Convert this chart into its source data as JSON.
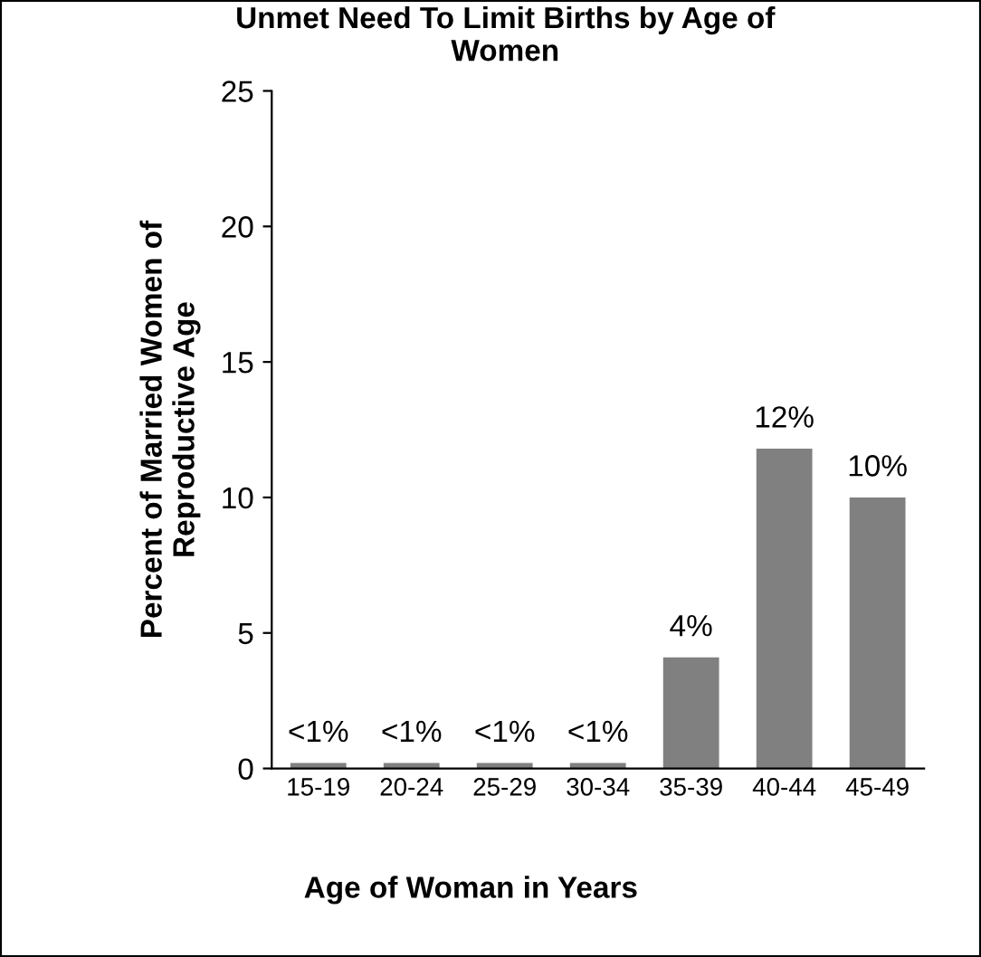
{
  "chart_data": {
    "type": "bar",
    "title": "Unmet Need To Limit Births by Age of\nWomen",
    "xlabel": "Age of Woman in Years",
    "ylabel": "Percent of Married Women of\nReproductive Age",
    "categories": [
      "15-19",
      "20-24",
      "25-29",
      "30-34",
      "35-39",
      "40-44",
      "45-49"
    ],
    "values": [
      0.2,
      0.2,
      0.2,
      0.2,
      4.1,
      11.8,
      10.0
    ],
    "value_labels": [
      "<1%",
      "<1%",
      "<1%",
      "<1%",
      "4%",
      "12%",
      "10%"
    ],
    "color": "#808080",
    "ylim": [
      0,
      25
    ],
    "yticks": [
      0,
      5,
      10,
      15,
      20,
      25
    ],
    "grid": false,
    "legend": false
  }
}
